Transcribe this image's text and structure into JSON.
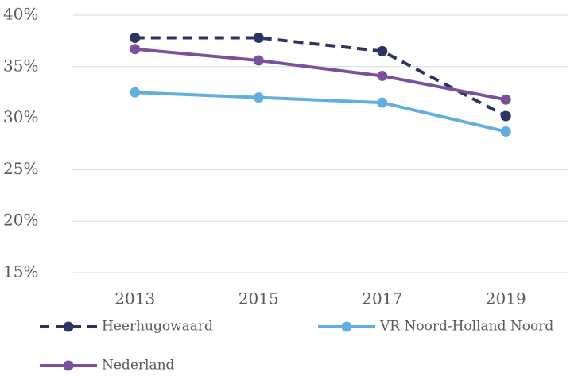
{
  "chart_data": {
    "type": "line",
    "categories": [
      "2013",
      "2015",
      "2017",
      "2019"
    ],
    "series": [
      {
        "name": "Heerhugowaard",
        "color": "#2e3460",
        "dashed": true,
        "values": [
          37.8,
          37.8,
          36.5,
          30.2
        ]
      },
      {
        "name": "VR Noord-Holland Noord",
        "color": "#62aee0",
        "dashed": false,
        "values": [
          32.5,
          32.0,
          31.5,
          28.7
        ]
      },
      {
        "name": "Nederland",
        "color": "#7b519d",
        "dashed": false,
        "values": [
          36.7,
          35.6,
          34.1,
          31.8
        ]
      }
    ],
    "ylim": [
      15,
      40
    ],
    "yticks": [
      {
        "value": 15,
        "label": "15%"
      },
      {
        "value": 20,
        "label": "20%"
      },
      {
        "value": 25,
        "label": "25%"
      },
      {
        "value": 30,
        "label": "30%"
      },
      {
        "value": 35,
        "label": "35%"
      },
      {
        "value": 40,
        "label": "40%"
      }
    ],
    "grid": true,
    "legend": "bottom"
  }
}
